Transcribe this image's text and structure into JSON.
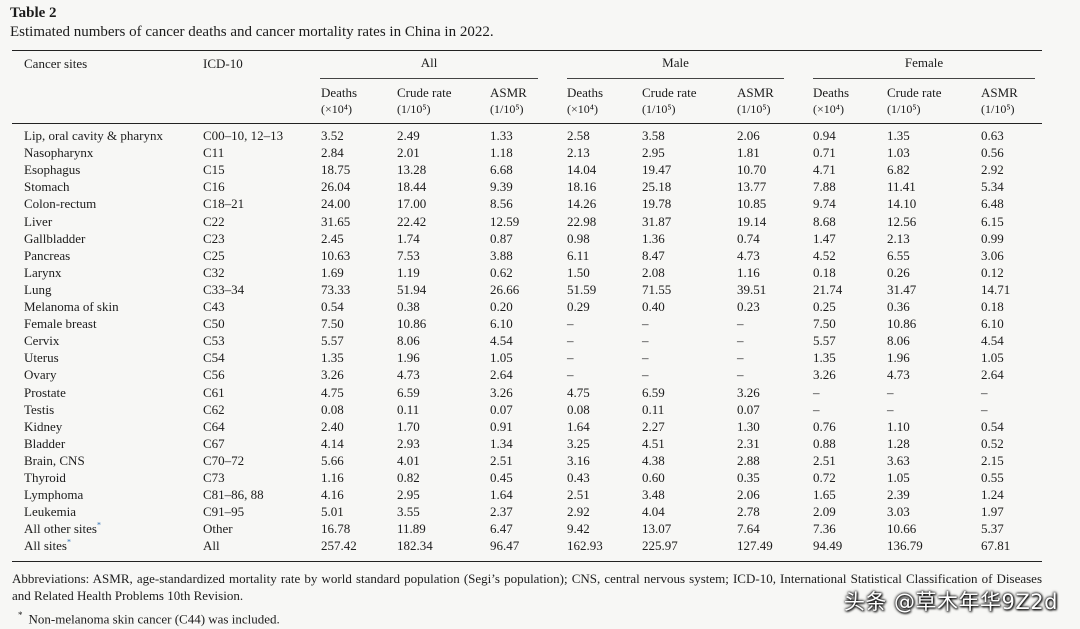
{
  "caption": {
    "label": "Table 2",
    "title": "Estimated numbers of cancer deaths and cancer mortality rates in China in 2022."
  },
  "header": {
    "site": "Cancer sites",
    "icd": "ICD-10",
    "groups": [
      "All",
      "Male",
      "Female"
    ],
    "sub": [
      {
        "name": "Deaths",
        "unit": "(×10⁴)"
      },
      {
        "name": "Crude rate",
        "unit": "(1/10⁵)"
      },
      {
        "name": "ASMR",
        "unit": "(1/10⁵)"
      }
    ]
  },
  "rows": [
    {
      "site": "Lip, oral cavity & pharynx",
      "icd": "C00–10, 12–13",
      "v": [
        "3.52",
        "2.49",
        "1.33",
        "2.58",
        "3.58",
        "2.06",
        "0.94",
        "1.35",
        "0.63"
      ]
    },
    {
      "site": "Nasopharynx",
      "icd": "C11",
      "v": [
        "2.84",
        "2.01",
        "1.18",
        "2.13",
        "2.95",
        "1.81",
        "0.71",
        "1.03",
        "0.56"
      ]
    },
    {
      "site": "Esophagus",
      "icd": "C15",
      "v": [
        "18.75",
        "13.28",
        "6.68",
        "14.04",
        "19.47",
        "10.70",
        "4.71",
        "6.82",
        "2.92"
      ]
    },
    {
      "site": "Stomach",
      "icd": "C16",
      "v": [
        "26.04",
        "18.44",
        "9.39",
        "18.16",
        "25.18",
        "13.77",
        "7.88",
        "11.41",
        "5.34"
      ]
    },
    {
      "site": "Colon-rectum",
      "icd": "C18–21",
      "v": [
        "24.00",
        "17.00",
        "8.56",
        "14.26",
        "19.78",
        "10.85",
        "9.74",
        "14.10",
        "6.48"
      ]
    },
    {
      "site": "Liver",
      "icd": "C22",
      "v": [
        "31.65",
        "22.42",
        "12.59",
        "22.98",
        "31.87",
        "19.14",
        "8.68",
        "12.56",
        "6.15"
      ]
    },
    {
      "site": "Gallbladder",
      "icd": "C23",
      "v": [
        "2.45",
        "1.74",
        "0.87",
        "0.98",
        "1.36",
        "0.74",
        "1.47",
        "2.13",
        "0.99"
      ]
    },
    {
      "site": "Pancreas",
      "icd": "C25",
      "v": [
        "10.63",
        "7.53",
        "3.88",
        "6.11",
        "8.47",
        "4.73",
        "4.52",
        "6.55",
        "3.06"
      ]
    },
    {
      "site": "Larynx",
      "icd": "C32",
      "v": [
        "1.69",
        "1.19",
        "0.62",
        "1.50",
        "2.08",
        "1.16",
        "0.18",
        "0.26",
        "0.12"
      ]
    },
    {
      "site": "Lung",
      "icd": "C33–34",
      "v": [
        "73.33",
        "51.94",
        "26.66",
        "51.59",
        "71.55",
        "39.51",
        "21.74",
        "31.47",
        "14.71"
      ]
    },
    {
      "site": "Melanoma of skin",
      "icd": "C43",
      "v": [
        "0.54",
        "0.38",
        "0.20",
        "0.29",
        "0.40",
        "0.23",
        "0.25",
        "0.36",
        "0.18"
      ]
    },
    {
      "site": "Female breast",
      "icd": "C50",
      "v": [
        "7.50",
        "10.86",
        "6.10",
        "–",
        "–",
        "–",
        "7.50",
        "10.86",
        "6.10"
      ]
    },
    {
      "site": "Cervix",
      "icd": "C53",
      "v": [
        "5.57",
        "8.06",
        "4.54",
        "–",
        "–",
        "–",
        "5.57",
        "8.06",
        "4.54"
      ]
    },
    {
      "site": "Uterus",
      "icd": "C54",
      "v": [
        "1.35",
        "1.96",
        "1.05",
        "–",
        "–",
        "–",
        "1.35",
        "1.96",
        "1.05"
      ]
    },
    {
      "site": "Ovary",
      "icd": "C56",
      "v": [
        "3.26",
        "4.73",
        "2.64",
        "–",
        "–",
        "–",
        "3.26",
        "4.73",
        "2.64"
      ]
    },
    {
      "site": "Prostate",
      "icd": "C61",
      "v": [
        "4.75",
        "6.59",
        "3.26",
        "4.75",
        "6.59",
        "3.26",
        "–",
        "–",
        "–"
      ]
    },
    {
      "site": "Testis",
      "icd": "C62",
      "v": [
        "0.08",
        "0.11",
        "0.07",
        "0.08",
        "0.11",
        "0.07",
        "–",
        "–",
        "–"
      ]
    },
    {
      "site": "Kidney",
      "icd": "C64",
      "v": [
        "2.40",
        "1.70",
        "0.91",
        "1.64",
        "2.27",
        "1.30",
        "0.76",
        "1.10",
        "0.54"
      ]
    },
    {
      "site": "Bladder",
      "icd": "C67",
      "v": [
        "4.14",
        "2.93",
        "1.34",
        "3.25",
        "4.51",
        "2.31",
        "0.88",
        "1.28",
        "0.52"
      ]
    },
    {
      "site": "Brain, CNS",
      "icd": "C70–72",
      "v": [
        "5.66",
        "4.01",
        "2.51",
        "3.16",
        "4.38",
        "2.88",
        "2.51",
        "3.63",
        "2.15"
      ]
    },
    {
      "site": "Thyroid",
      "icd": "C73",
      "v": [
        "1.16",
        "0.82",
        "0.45",
        "0.43",
        "0.60",
        "0.35",
        "0.72",
        "1.05",
        "0.55"
      ]
    },
    {
      "site": "Lymphoma",
      "icd": "C81–86, 88",
      "v": [
        "4.16",
        "2.95",
        "1.64",
        "2.51",
        "3.48",
        "2.06",
        "1.65",
        "2.39",
        "1.24"
      ]
    },
    {
      "site": "Leukemia",
      "icd": "C91–95",
      "v": [
        "5.01",
        "3.55",
        "2.37",
        "2.92",
        "4.04",
        "2.78",
        "2.09",
        "3.03",
        "1.97"
      ]
    },
    {
      "site": "All other sites",
      "star": "*",
      "icd": "Other",
      "v": [
        "16.78",
        "11.89",
        "6.47",
        "9.42",
        "13.07",
        "7.64",
        "7.36",
        "10.66",
        "5.37"
      ]
    },
    {
      "site": "All sites",
      "star": "*",
      "icd": "All",
      "v": [
        "257.42",
        "182.34",
        "96.47",
        "162.93",
        "225.97",
        "127.49",
        "94.49",
        "136.79",
        "67.81"
      ]
    }
  ],
  "footer": {
    "abbreviations": "Abbreviations: ASMR, age-standardized mortality rate by world standard population (Segi’s population); CNS, central nervous system; ICD-10, International Statistical Classification of Diseases and Related Health Problems 10th Revision.",
    "note_mark": "*",
    "note": "Non-melanoma skin cancer (C44) was included."
  },
  "watermark": "头条 @草木年华9Z2d"
}
